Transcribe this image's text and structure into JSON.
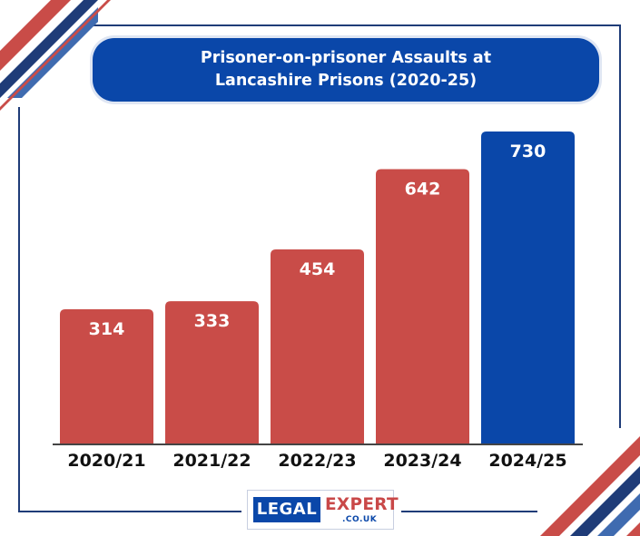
{
  "colors": {
    "primary_bar": "#c94c48",
    "highlight_bar": "#0a47a9",
    "navy": "#1f3c78",
    "mid_blue": "#3f6bb0",
    "title_bg": "#0a47a9"
  },
  "title": {
    "line1": "Prisoner-on-prisoner Assaults at",
    "line2": "Lancashire Prisons (2020-25)"
  },
  "chart_data": {
    "type": "bar",
    "title": "Prisoner-on-prisoner Assaults at Lancashire Prisons (2020-25)",
    "categories": [
      "2020/21",
      "2021/22",
      "2022/23",
      "2023/24",
      "2024/25"
    ],
    "values": [
      314,
      333,
      454,
      642,
      730
    ],
    "data_labels": [
      "314",
      "333",
      "454",
      "642",
      "730"
    ],
    "highlighted_category": "2024/25",
    "ylim": [
      0,
      730
    ],
    "grid": false,
    "legend": "none"
  },
  "logo": {
    "legal": "LEGAL",
    "expert": "EXPERT",
    "domain": ".CO.UK"
  }
}
